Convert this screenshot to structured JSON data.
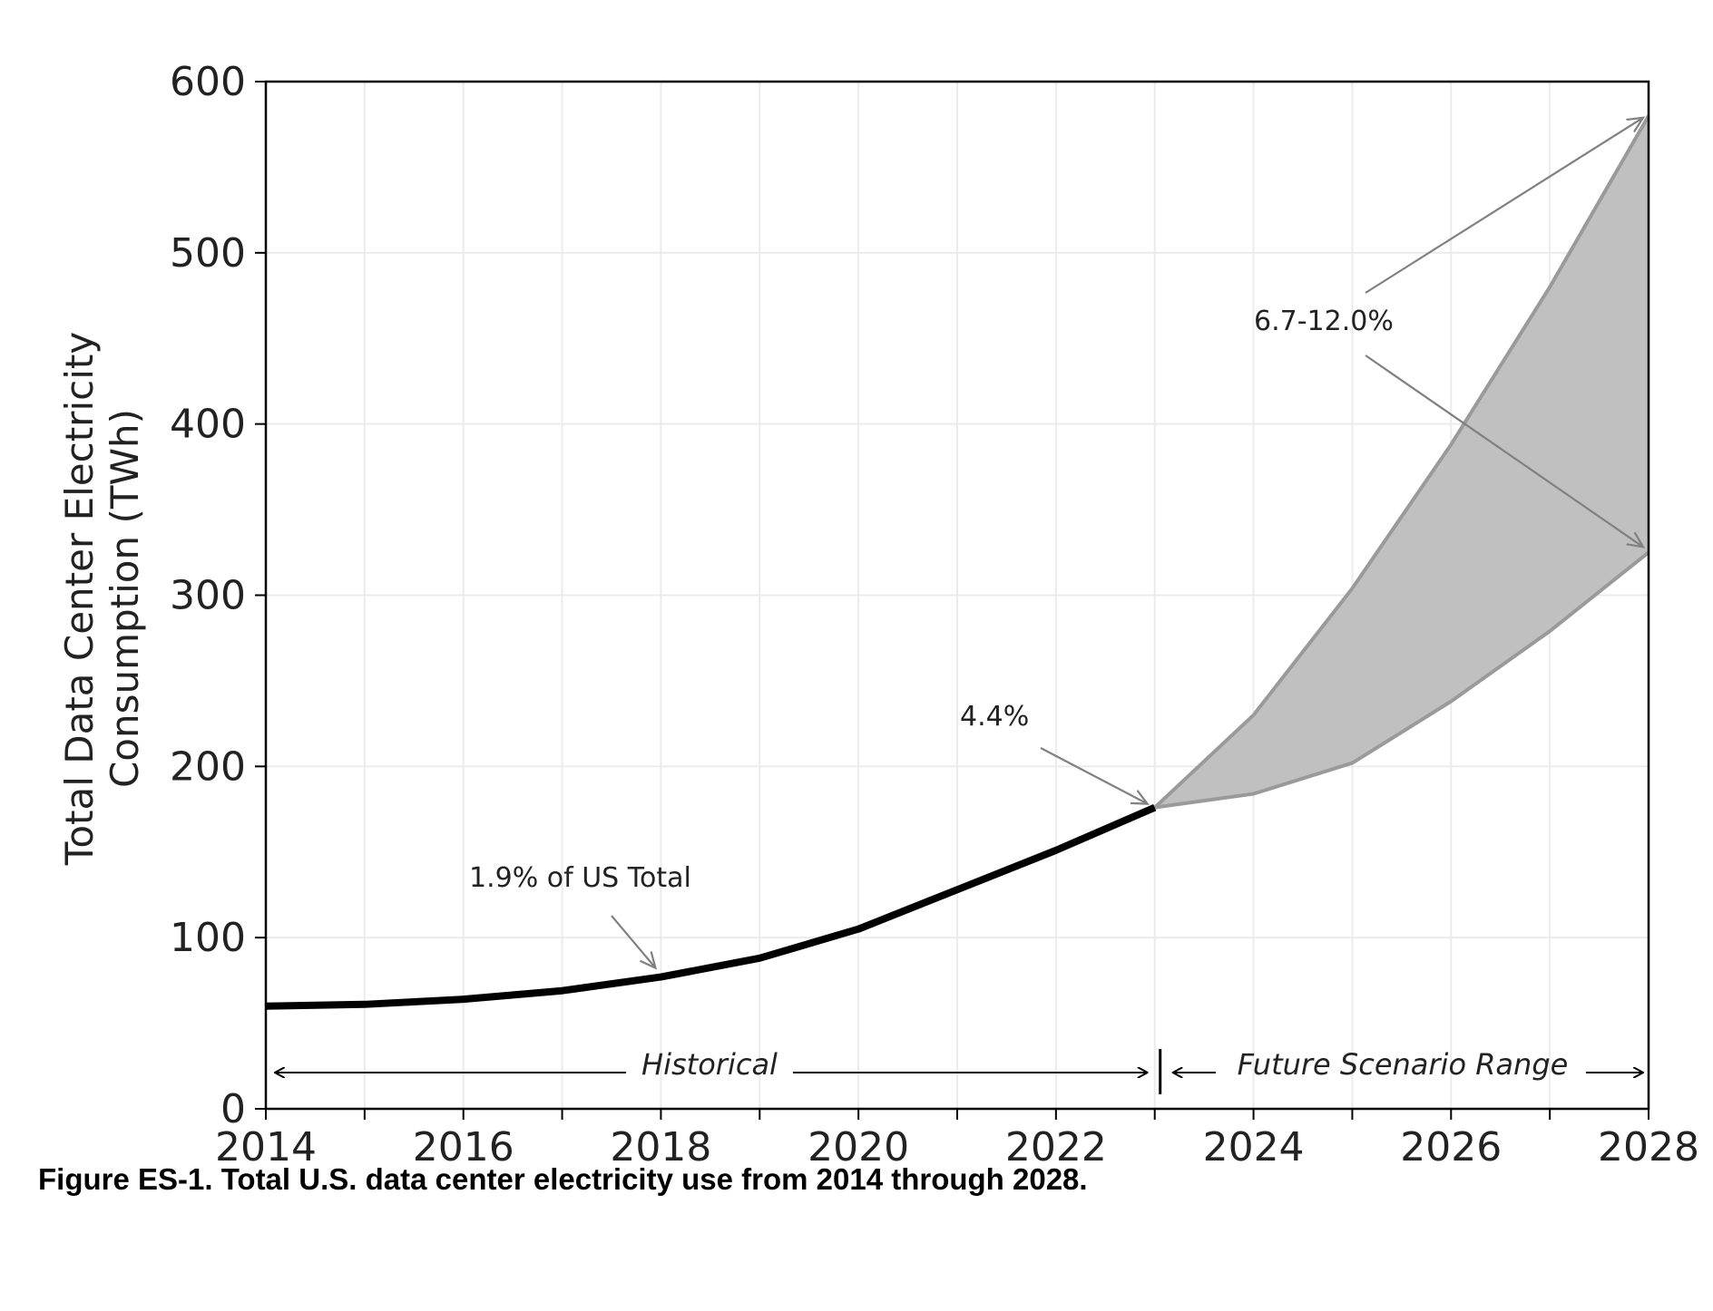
{
  "chart_data": {
    "type": "line",
    "ylabel_line1": "Total Data Center Electricity",
    "ylabel_line2": "Consumption (TWh)",
    "xlim": [
      2014,
      2028
    ],
    "ylim": [
      0,
      600
    ],
    "x_ticks": [
      2014,
      2016,
      2018,
      2020,
      2022,
      2024,
      2026,
      2028
    ],
    "y_ticks": [
      0,
      100,
      200,
      300,
      400,
      500,
      600
    ],
    "grid": true,
    "historical": {
      "x": [
        2014,
        2015,
        2016,
        2017,
        2018,
        2019,
        2020,
        2021,
        2022,
        2023
      ],
      "y": [
        60,
        61,
        64,
        69,
        77,
        88,
        105,
        128,
        151,
        176
      ]
    },
    "future_range": {
      "x": [
        2023,
        2024,
        2025,
        2026,
        2027,
        2028
      ],
      "upper": [
        176,
        230,
        304,
        388,
        480,
        580
      ],
      "lower": [
        176,
        184,
        202,
        238,
        279,
        325
      ]
    },
    "colors": {
      "historical": "#000000",
      "range_fill": "#c0c0c0",
      "range_edge": "#9a9a9a",
      "grid": "#ebebeb"
    },
    "annotations": {
      "share_2018": "1.9% of US Total",
      "share_2023": "4.4%",
      "share_2028": "6.7-12.0%"
    },
    "period_labels": {
      "historical": "Historical",
      "future": "Future Scenario Range"
    }
  },
  "caption": "Figure ES-1. Total U.S. data center electricity use from 2014 through 2028."
}
